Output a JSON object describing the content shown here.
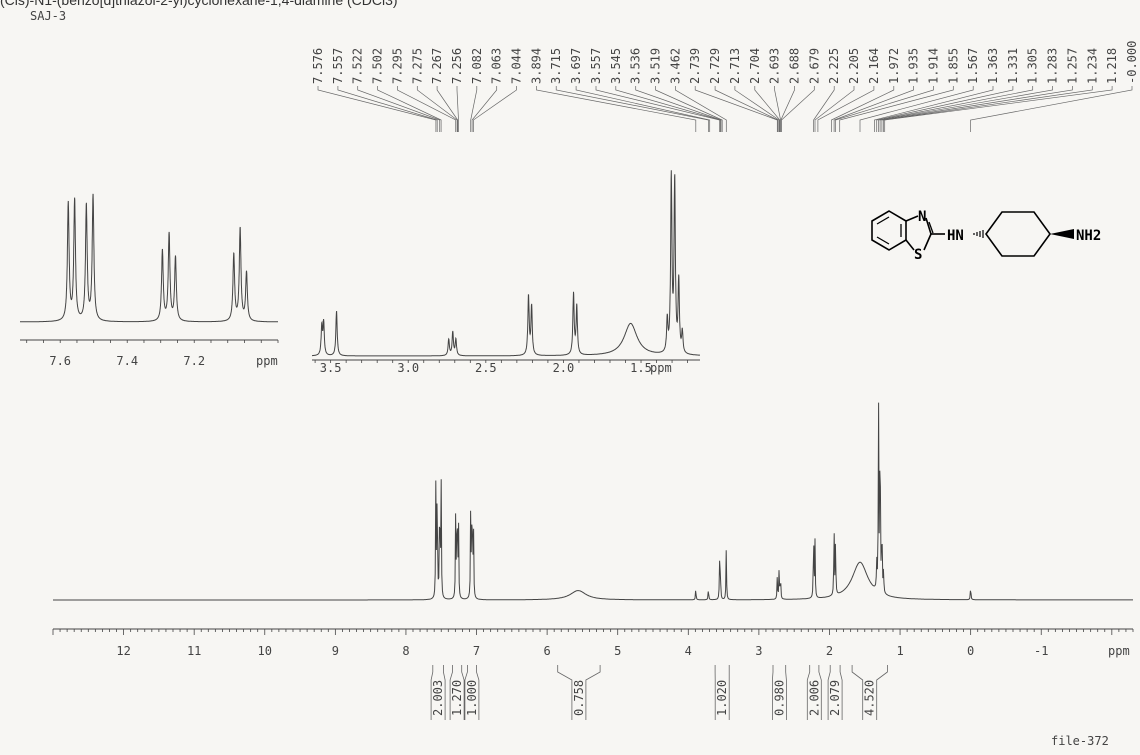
{
  "header_text": "(Cis)-N1-(benzo[d]thiazol-2-yl)cyclohexane-1,4-diamine (CDCl3)",
  "sample_name": "SAJ-3",
  "file_id": "file-372",
  "chart_data": [
    {
      "type": "line",
      "name": "main-spectrum",
      "xlabel": "ppm",
      "xlim": [
        13,
        -2.3
      ],
      "x_ticks": [
        12,
        11,
        10,
        9,
        8,
        7,
        6,
        5,
        4,
        3,
        2,
        1,
        0,
        -1
      ],
      "peaks": [
        {
          "ppm": 7.576,
          "height": 0.5
        },
        {
          "ppm": 7.557,
          "height": 0.52
        },
        {
          "ppm": 7.522,
          "height": 0.49
        },
        {
          "ppm": 7.502,
          "height": 0.54
        },
        {
          "ppm": 7.295,
          "height": 0.38
        },
        {
          "ppm": 7.275,
          "height": 0.46
        },
        {
          "ppm": 7.256,
          "height": 0.36
        },
        {
          "ppm": 7.082,
          "height": 0.42
        },
        {
          "ppm": 7.063,
          "height": 0.48
        },
        {
          "ppm": 7.044,
          "height": 0.36
        },
        {
          "ppm": 5.56,
          "height": 0.04,
          "broad": true
        },
        {
          "ppm": 3.894,
          "height": 0.05
        },
        {
          "ppm": 3.715,
          "height": 0.05
        },
        {
          "ppm": 3.557,
          "height": 0.15
        },
        {
          "ppm": 3.545,
          "height": 0.13
        },
        {
          "ppm": 3.462,
          "height": 0.22
        },
        {
          "ppm": 2.739,
          "height": 0.1
        },
        {
          "ppm": 2.713,
          "height": 0.14
        },
        {
          "ppm": 2.693,
          "height": 0.1
        },
        {
          "ppm": 2.225,
          "height": 0.3
        },
        {
          "ppm": 2.205,
          "height": 0.24
        },
        {
          "ppm": 1.935,
          "height": 0.3
        },
        {
          "ppm": 1.914,
          "height": 0.24
        },
        {
          "ppm": 1.567,
          "height": 0.16,
          "broad": true
        },
        {
          "ppm": 1.331,
          "height": 0.12
        },
        {
          "ppm": 1.305,
          "height": 0.8
        },
        {
          "ppm": 1.283,
          "height": 0.82
        },
        {
          "ppm": 1.257,
          "height": 0.32
        },
        {
          "ppm": 1.234,
          "height": 0.1
        },
        {
          "ppm": 0.0,
          "height": 0.06
        }
      ]
    },
    {
      "type": "line",
      "name": "inset-aromatic",
      "xlabel": "ppm",
      "xlim": [
        7.72,
        6.95
      ],
      "x_ticks": [
        7.6,
        7.4,
        7.2
      ],
      "peaks": [
        {
          "ppm": 7.576,
          "height": 0.92
        },
        {
          "ppm": 7.557,
          "height": 0.94
        },
        {
          "ppm": 7.522,
          "height": 0.9
        },
        {
          "ppm": 7.502,
          "height": 0.98
        },
        {
          "ppm": 7.295,
          "height": 0.55
        },
        {
          "ppm": 7.275,
          "height": 0.68
        },
        {
          "ppm": 7.256,
          "height": 0.5
        },
        {
          "ppm": 7.082,
          "height": 0.52
        },
        {
          "ppm": 7.063,
          "height": 0.72
        },
        {
          "ppm": 7.044,
          "height": 0.38
        }
      ]
    },
    {
      "type": "line",
      "name": "inset-aliphatic",
      "xlabel": "ppm",
      "xlim": [
        3.62,
        1.12
      ],
      "x_ticks": [
        3.5,
        3.0,
        2.5,
        2.0,
        1.5
      ],
      "peaks": [
        {
          "ppm": 3.557,
          "height": 0.16
        },
        {
          "ppm": 3.545,
          "height": 0.18
        },
        {
          "ppm": 3.462,
          "height": 0.25
        },
        {
          "ppm": 2.739,
          "height": 0.09
        },
        {
          "ppm": 2.713,
          "height": 0.13
        },
        {
          "ppm": 2.693,
          "height": 0.09
        },
        {
          "ppm": 2.225,
          "height": 0.33
        },
        {
          "ppm": 2.205,
          "height": 0.27
        },
        {
          "ppm": 1.935,
          "height": 0.34
        },
        {
          "ppm": 1.914,
          "height": 0.27
        },
        {
          "ppm": 1.567,
          "height": 0.18,
          "broad": true
        },
        {
          "ppm": 1.331,
          "height": 0.18
        },
        {
          "ppm": 1.305,
          "height": 0.97
        },
        {
          "ppm": 1.283,
          "height": 0.95
        },
        {
          "ppm": 1.257,
          "height": 0.4
        },
        {
          "ppm": 1.234,
          "height": 0.12
        }
      ]
    }
  ],
  "peak_labels": [
    "7.576",
    "7.557",
    "7.522",
    "7.502",
    "7.295",
    "7.275",
    "7.267",
    "7.256",
    "7.082",
    "7.063",
    "7.044",
    "3.894",
    "3.715",
    "3.697",
    "3.557",
    "3.545",
    "3.536",
    "3.519",
    "3.462",
    "2.739",
    "2.729",
    "2.713",
    "2.704",
    "2.693",
    "2.688",
    "2.679",
    "2.225",
    "2.205",
    "2.164",
    "1.972",
    "1.935",
    "1.914",
    "1.855",
    "1.567",
    "1.363",
    "1.331",
    "1.305",
    "1.283",
    "1.257",
    "1.234",
    "1.218",
    "-0.000"
  ],
  "integrals": [
    {
      "value": "2.003",
      "from": 7.62,
      "to": 7.47
    },
    {
      "value": "1.270",
      "from": 7.34,
      "to": 7.21
    },
    {
      "value": "1.000",
      "from": 7.13,
      "to": 7.0
    },
    {
      "value": "0.758",
      "from": 5.85,
      "to": 5.25
    },
    {
      "value": "1.020",
      "from": 3.62,
      "to": 3.42
    },
    {
      "value": "0.980",
      "from": 2.8,
      "to": 2.62
    },
    {
      "value": "2.006",
      "from": 2.28,
      "to": 2.15
    },
    {
      "value": "2.079",
      "from": 1.99,
      "to": 1.85
    },
    {
      "value": "4.520",
      "from": 1.68,
      "to": 1.18
    }
  ],
  "structure": {
    "atom_n": "N",
    "atom_s": "S",
    "amine_left": "HN",
    "amine_right": "NH2"
  }
}
